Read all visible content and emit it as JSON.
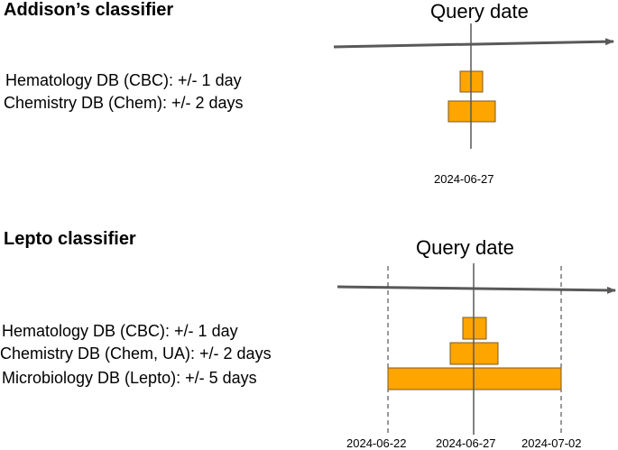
{
  "addison": {
    "title": "Addison’s classifier",
    "query_label": "Query date",
    "rules": [
      "Hematology DB (CBC): +/- 1 day",
      "Chemistry DB (Chem): +/- 2 days"
    ],
    "date": "2024-06-27"
  },
  "lepto": {
    "title": "Lepto classifier",
    "query_label": "Query date",
    "rules": [
      "Hematology DB (CBC): +/- 1 day",
      "Chemistry DB (Chem, UA): +/- 2 days",
      "Microbiology DB (Lepto): +/- 5 days"
    ],
    "dates": [
      "2024-06-22",
      "2024-06-27",
      "2024-07-02"
    ]
  },
  "colors": {
    "window_fill": "#FFA500",
    "window_stroke": "#7a5a2a",
    "axis": "#595959"
  }
}
